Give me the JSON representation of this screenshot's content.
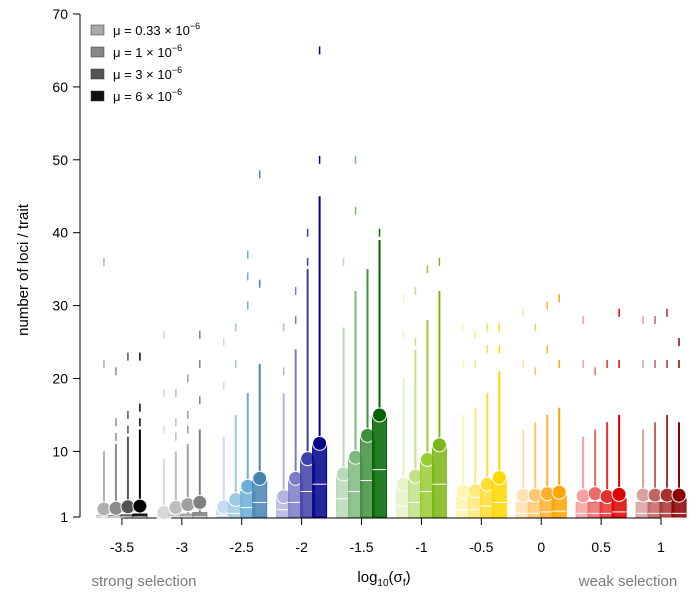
{
  "chart_data": {
    "type": "box",
    "xlabel": "log₁₀(σₑ)",
    "xlabel_main": "log",
    "xlabel_sub": "10",
    "xlabel_arg": "(σ",
    "xlabel_arg_sub": "f",
    "xlabel_close": ")",
    "ylabel": "number of loci / trait",
    "xlim": [
      -3.85,
      1.2
    ],
    "ylim": [
      1,
      70
    ],
    "x_ticks": [
      -3.5,
      -3,
      -2.5,
      -2,
      -1.5,
      -1,
      -0.5,
      0,
      0.5,
      1
    ],
    "x_tick_labels": [
      "-3.5",
      "-3",
      "-2.5",
      "-2",
      "-1.5",
      "-1",
      "-0.5",
      "0",
      "0.5",
      "1"
    ],
    "y_ticks": [
      1,
      10,
      20,
      30,
      40,
      50,
      60,
      70
    ],
    "y_tick_labels": [
      "1",
      "10",
      "20",
      "30",
      "40",
      "50",
      "60",
      "70"
    ],
    "notes": {
      "left": "strong selection",
      "right": "weak selection"
    },
    "legend": {
      "placement": "top-left",
      "entries": [
        {
          "prefix": "μ = 0.33 × 10",
          "exp": "−6",
          "color": "#aaaaaa"
        },
        {
          "prefix": "μ = 1 × 10",
          "exp": "−6",
          "color": "#888888"
        },
        {
          "prefix": "μ = 3 × 10",
          "exp": "−6",
          "color": "#555555"
        },
        {
          "prefix": "μ = 6 × 10",
          "exp": "−6",
          "color": "#111111"
        }
      ]
    },
    "mu_offsets": [
      -0.15,
      -0.05,
      0.05,
      0.15
    ],
    "groups": [
      {
        "x": -3.5,
        "colors": [
          "#b0b0b0",
          "#8c8c8c",
          "#545454",
          "#000000"
        ],
        "means": [
          2.1,
          2.2,
          2.4,
          2.5
        ],
        "medians": [
          1,
          1,
          1,
          1
        ],
        "q3": [
          1.2,
          1.2,
          1.3,
          1.4
        ],
        "whisker_max": [
          10,
          11,
          12,
          13
        ],
        "outliers": [
          [
            22,
            36
          ],
          [
            21,
            14,
            12
          ],
          [
            23,
            15,
            13
          ],
          [
            23,
            16,
            14
          ]
        ]
      },
      {
        "x": -3,
        "colors": [
          "#d8d8d8",
          "#bdbdbd",
          "#a0a0a0",
          "#808080"
        ],
        "means": [
          1.6,
          2.3,
          2.7,
          3.0
        ],
        "medians": [
          1,
          1,
          1,
          1
        ],
        "q3": [
          1.1,
          1.3,
          1.4,
          1.6
        ],
        "whisker_max": [
          9,
          10,
          11,
          13
        ],
        "outliers": [
          [
            18,
            26,
            13
          ],
          [
            18,
            14,
            12
          ],
          [
            20,
            15,
            13
          ],
          [
            26,
            22,
            17
          ]
        ]
      },
      {
        "x": -2.5,
        "colors": [
          "#c6dbef",
          "#9ecae1",
          "#6baed6",
          "#4682b4"
        ],
        "means": [
          2.4,
          3.4,
          5.2,
          6.3
        ],
        "medians": [
          1.2,
          1.5,
          2.3,
          3
        ],
        "q3": [
          2,
          3,
          4.5,
          6
        ],
        "whisker_max": [
          12,
          15,
          18,
          22
        ],
        "outliers": [
          [
            25,
            19
          ],
          [
            27,
            22
          ],
          [
            37,
            34,
            30
          ],
          [
            48,
            33
          ]
        ]
      },
      {
        "x": -2,
        "colors": [
          "#b4b4dc",
          "#7b7bc8",
          "#3f3fa8",
          "#00008b"
        ],
        "means": [
          3.8,
          6.3,
          9.0,
          11.1
        ],
        "medians": [
          2,
          3,
          4.5,
          5.5
        ],
        "q3": [
          4,
          6,
          9,
          11
        ],
        "whisker_max": [
          18,
          24,
          35,
          45
        ],
        "outliers": [
          [
            27,
            21
          ],
          [
            32,
            28
          ],
          [
            40,
            36
          ],
          [
            65,
            50
          ]
        ]
      },
      {
        "x": -1.5,
        "colors": [
          "#b9d7b9",
          "#7fb87f",
          "#3f8f3f",
          "#006400"
        ],
        "means": [
          6.9,
          9.2,
          12.2,
          15.0
        ],
        "medians": [
          3.5,
          4.5,
          6,
          7.5
        ],
        "q3": [
          7,
          9,
          12,
          15
        ],
        "whisker_max": [
          27,
          32,
          35,
          39
        ],
        "outliers": [
          [
            36
          ],
          [
            50,
            43
          ],
          [
            33
          ],
          [
            40
          ]
        ]
      },
      {
        "x": -1,
        "colors": [
          "#e6f2c8",
          "#c2e18a",
          "#9acd32",
          "#7cb518"
        ],
        "means": [
          5.5,
          6.6,
          8.9,
          10.9
        ],
        "medians": [
          2.5,
          3,
          4.5,
          5.5
        ],
        "q3": [
          5,
          6,
          9,
          11
        ],
        "whisker_max": [
          20,
          24,
          28,
          32
        ],
        "outliers": [
          [
            31,
            26
          ],
          [
            32,
            25
          ],
          [
            35
          ],
          [
            36
          ]
        ]
      },
      {
        "x": -0.5,
        "colors": [
          "#fff4b0",
          "#ffe97a",
          "#ffdd33",
          "#ffd700"
        ],
        "means": [
          4.5,
          4.6,
          5.5,
          6.4
        ],
        "medians": [
          2,
          2,
          2.5,
          3
        ],
        "q3": [
          4,
          4,
          5,
          6
        ],
        "whisker_max": [
          15,
          16,
          18,
          21
        ],
        "outliers": [
          [
            27,
            22
          ],
          [
            26,
            22
          ],
          [
            27,
            24
          ],
          [
            27,
            24
          ]
        ]
      },
      {
        "x": 0,
        "colors": [
          "#ffe0b0",
          "#ffc870",
          "#ffb030",
          "#ffa500"
        ],
        "means": [
          4.0,
          4.0,
          4.2,
          4.4
        ],
        "medians": [
          1.5,
          1.5,
          1.7,
          1.8
        ],
        "q3": [
          3,
          3,
          3.5,
          4
        ],
        "whisker_max": [
          13,
          14,
          15,
          16
        ],
        "outliers": [
          [
            29,
            22
          ],
          [
            27,
            21
          ],
          [
            30,
            24
          ],
          [
            31,
            22
          ]
        ]
      },
      {
        "x": 0.5,
        "colors": [
          "#f4a0a0",
          "#ec6a6a",
          "#e53030",
          "#e00000"
        ],
        "means": [
          3.9,
          4.2,
          3.8,
          4.1
        ],
        "medians": [
          1.5,
          1.5,
          1.5,
          1.7
        ],
        "q3": [
          3,
          3,
          3,
          3.5
        ],
        "whisker_max": [
          12,
          13,
          14,
          15
        ],
        "outliers": [
          [
            28,
            22
          ],
          [
            21
          ],
          [
            22
          ],
          [
            29,
            22
          ]
        ]
      },
      {
        "x": 1,
        "colors": [
          "#dba0a0",
          "#c26464",
          "#a83232",
          "#8b0000"
        ],
        "means": [
          4.0,
          4.0,
          4.0,
          4.0
        ],
        "medians": [
          1.5,
          1.5,
          1.5,
          1.5
        ],
        "q3": [
          3,
          3,
          3,
          3.5
        ],
        "whisker_max": [
          13,
          14,
          15,
          14
        ],
        "outliers": [
          [
            28,
            22
          ],
          [
            28,
            22
          ],
          [
            29,
            22
          ],
          [
            25,
            22
          ]
        ]
      }
    ]
  }
}
